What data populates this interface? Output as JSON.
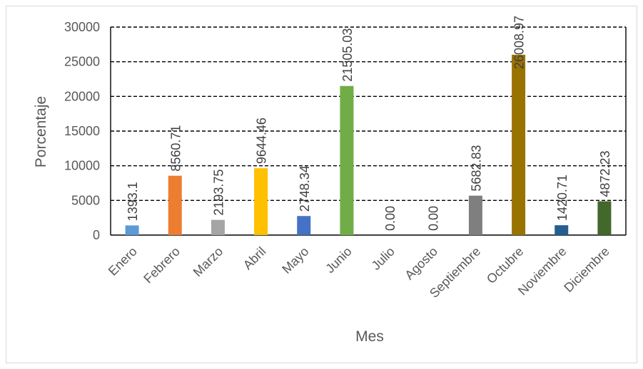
{
  "chart_data": {
    "type": "bar",
    "title": "",
    "xlabel": "Mes",
    "ylabel": "Porcentaje",
    "ylim": [
      0,
      30000
    ],
    "yticks": [
      0,
      5000,
      10000,
      15000,
      20000,
      25000,
      30000
    ],
    "grid": true,
    "legend": "none",
    "categories": [
      "Enero",
      "Febrero",
      "Marzo",
      "Abril",
      "Mayo",
      "Junio",
      "Julio",
      "Agosto",
      "Septiembre",
      "Octubre",
      "Noviembre",
      "Diciembre"
    ],
    "values": [
      1393.1,
      8560.71,
      2193.75,
      9644.46,
      2748.34,
      21505.03,
      0,
      0,
      5682.83,
      26008.97,
      1420.71,
      4872.23
    ],
    "data_labels": [
      "1393.1",
      "8560.71",
      "2193.75",
      "9644.46",
      "2748.34",
      "21505.03",
      "0.00",
      "0.00",
      "5682.83",
      "26008.97",
      "1420.71",
      "4872.23"
    ],
    "colors": [
      "#5b9bd5",
      "#ed7d31",
      "#a5a5a5",
      "#ffc000",
      "#4472c4",
      "#70ad47",
      "#264478",
      "#9e480e",
      "#7f7f7f",
      "#997300",
      "#255e91",
      "#43682b"
    ]
  }
}
